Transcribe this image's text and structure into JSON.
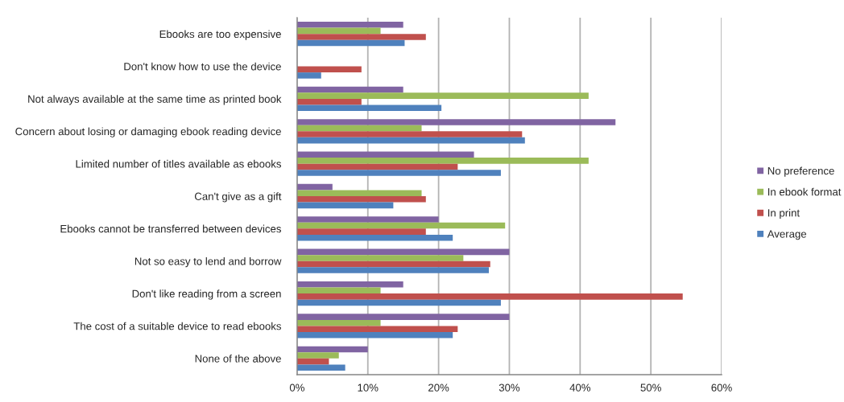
{
  "chart_data": {
    "type": "bar",
    "orientation": "horizontal",
    "categories": [
      "Ebooks are too expensive",
      "Don't know how to use the device",
      "Not always available at the same time as printed book",
      "Concern about losing or damaging ebook reading device",
      "Limited number of titles available as ebooks",
      "Can't give as a gift",
      "Ebooks cannot be transferred between devices",
      "Not so easy to lend and borrow",
      "Don't like reading from a screen",
      "The cost of a suitable device to read ebooks",
      "None of the above"
    ],
    "series": [
      {
        "name": "No preference",
        "color": "#8064a2",
        "values": [
          15.0,
          null,
          15.0,
          45.0,
          25.0,
          5.0,
          20.0,
          30.0,
          15.0,
          30.0,
          10.0
        ]
      },
      {
        "name": "In ebook format",
        "color": "#9bbb59",
        "values": [
          11.8,
          null,
          41.2,
          17.6,
          41.2,
          17.6,
          29.4,
          23.5,
          11.8,
          11.8,
          5.9
        ]
      },
      {
        "name": "In print",
        "color": "#c0504d",
        "values": [
          18.2,
          9.1,
          9.1,
          31.8,
          22.7,
          18.2,
          18.2,
          27.3,
          54.5,
          22.7,
          4.5
        ]
      },
      {
        "name": "Average",
        "color": "#4f81bd",
        "values": [
          15.2,
          3.4,
          20.4,
          32.2,
          28.8,
          13.6,
          22.0,
          27.1,
          28.8,
          22.0,
          6.8
        ]
      }
    ],
    "xlim": [
      0,
      60
    ],
    "xticks": [
      {
        "value": 0,
        "label": "0%"
      },
      {
        "value": 10,
        "label": "10%"
      },
      {
        "value": 20,
        "label": "20%"
      },
      {
        "value": 30,
        "label": "30%"
      },
      {
        "value": 40,
        "label": "40%"
      },
      {
        "value": 50,
        "label": "50%"
      },
      {
        "value": 60,
        "label": "60%"
      }
    ],
    "grid": "x",
    "legend": "right"
  }
}
